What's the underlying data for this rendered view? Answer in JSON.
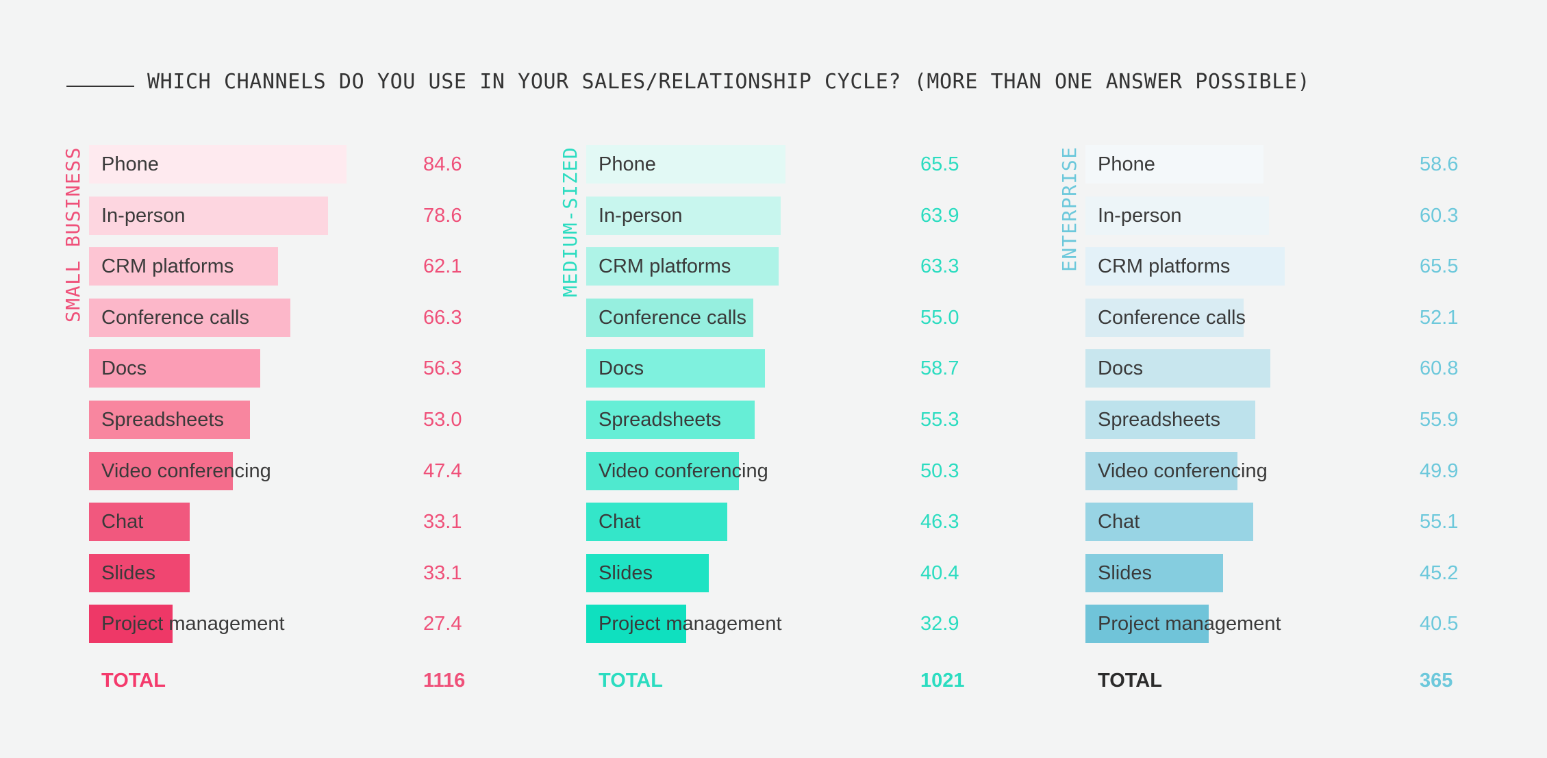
{
  "header": {
    "title": "WHICH CHANNELS DO YOU USE IN YOUR SALES/RELATIONSHIP CYCLE? (MORE THAN ONE ANSWER POSSIBLE)"
  },
  "chart_data": [
    {
      "type": "bar",
      "orientation": "horizontal",
      "title": "SMALL BUSINESS",
      "categories": [
        "Phone",
        "In-person",
        "CRM platforms",
        "Conference calls",
        "Docs",
        "Spreadsheets",
        "Video conferencing",
        "Chat",
        "Slides",
        "Project management"
      ],
      "value_labels": [
        "84.6",
        "78.6",
        "62.1",
        "66.3",
        "56.3",
        "53.0",
        "47.4",
        "33.1",
        "33.1",
        "27.4"
      ],
      "values": [
        84.6,
        78.6,
        62.1,
        66.3,
        56.3,
        53.0,
        47.4,
        33.1,
        33.1,
        27.4
      ],
      "total_label": "TOTAL",
      "total": "1116",
      "colors": {
        "label": "#ef5079",
        "total_label": "#f43a6c",
        "bars": [
          "#feeaef",
          "#fdd6e0",
          "#fdc5d3",
          "#fcb7c9",
          "#fb9db5",
          "#f8869f",
          "#f46d8c",
          "#f1587e",
          "#f04671",
          "#ee3867"
        ]
      }
    },
    {
      "type": "bar",
      "orientation": "horizontal",
      "title": "MEDIUM-SIZED",
      "categories": [
        "Phone",
        "In-person",
        "CRM platforms",
        "Conference calls",
        "Docs",
        "Spreadsheets",
        "Video conferencing",
        "Chat",
        "Slides",
        "Project management"
      ],
      "value_labels": [
        "65.5",
        "63.9",
        "63.3",
        "55.0",
        "58.7",
        "55.3",
        "50.3",
        "46.3",
        "40.4",
        "32.9"
      ],
      "values": [
        65.5,
        63.9,
        63.3,
        55.0,
        58.7,
        55.3,
        50.3,
        46.3,
        40.4,
        32.9
      ],
      "total_label": "TOTAL",
      "total": "1021",
      "colors": {
        "label": "#2bdcc0",
        "total_label": "#2bdcc0",
        "bars": [
          "#e2f9f5",
          "#c8f6ee",
          "#aef3e7",
          "#96efdf",
          "#7ff1de",
          "#66eed6",
          "#4fe9cf",
          "#34e6c9",
          "#1ee3c3",
          "#0fe0bf"
        ]
      }
    },
    {
      "type": "bar",
      "orientation": "horizontal",
      "title": "ENTERPRISE",
      "categories": [
        "Phone",
        "In-person",
        "CRM platforms",
        "Conference calls",
        "Docs",
        "Spreadsheets",
        "Video conferencing",
        "Chat",
        "Slides",
        "Project management"
      ],
      "value_labels": [
        "58.6",
        "60.3",
        "65.5",
        "52.1",
        "60.8",
        "55.9",
        "49.9",
        "55.1",
        "45.2",
        "40.5"
      ],
      "values": [
        58.6,
        60.3,
        65.5,
        52.1,
        60.8,
        55.9,
        49.9,
        55.1,
        45.2,
        40.5
      ],
      "total_label": "TOTAL",
      "total": "365",
      "colors": {
        "label": "#6cc8db",
        "total_label": "#2b2b2b",
        "bars": [
          "#f4f8fa",
          "#edf5f8",
          "#e3f1f8",
          "#d9ecf3",
          "#c8e6ee",
          "#bde2ec",
          "#a8d8e6",
          "#98d4e4",
          "#85cddf",
          "#70c4d9"
        ]
      }
    }
  ]
}
